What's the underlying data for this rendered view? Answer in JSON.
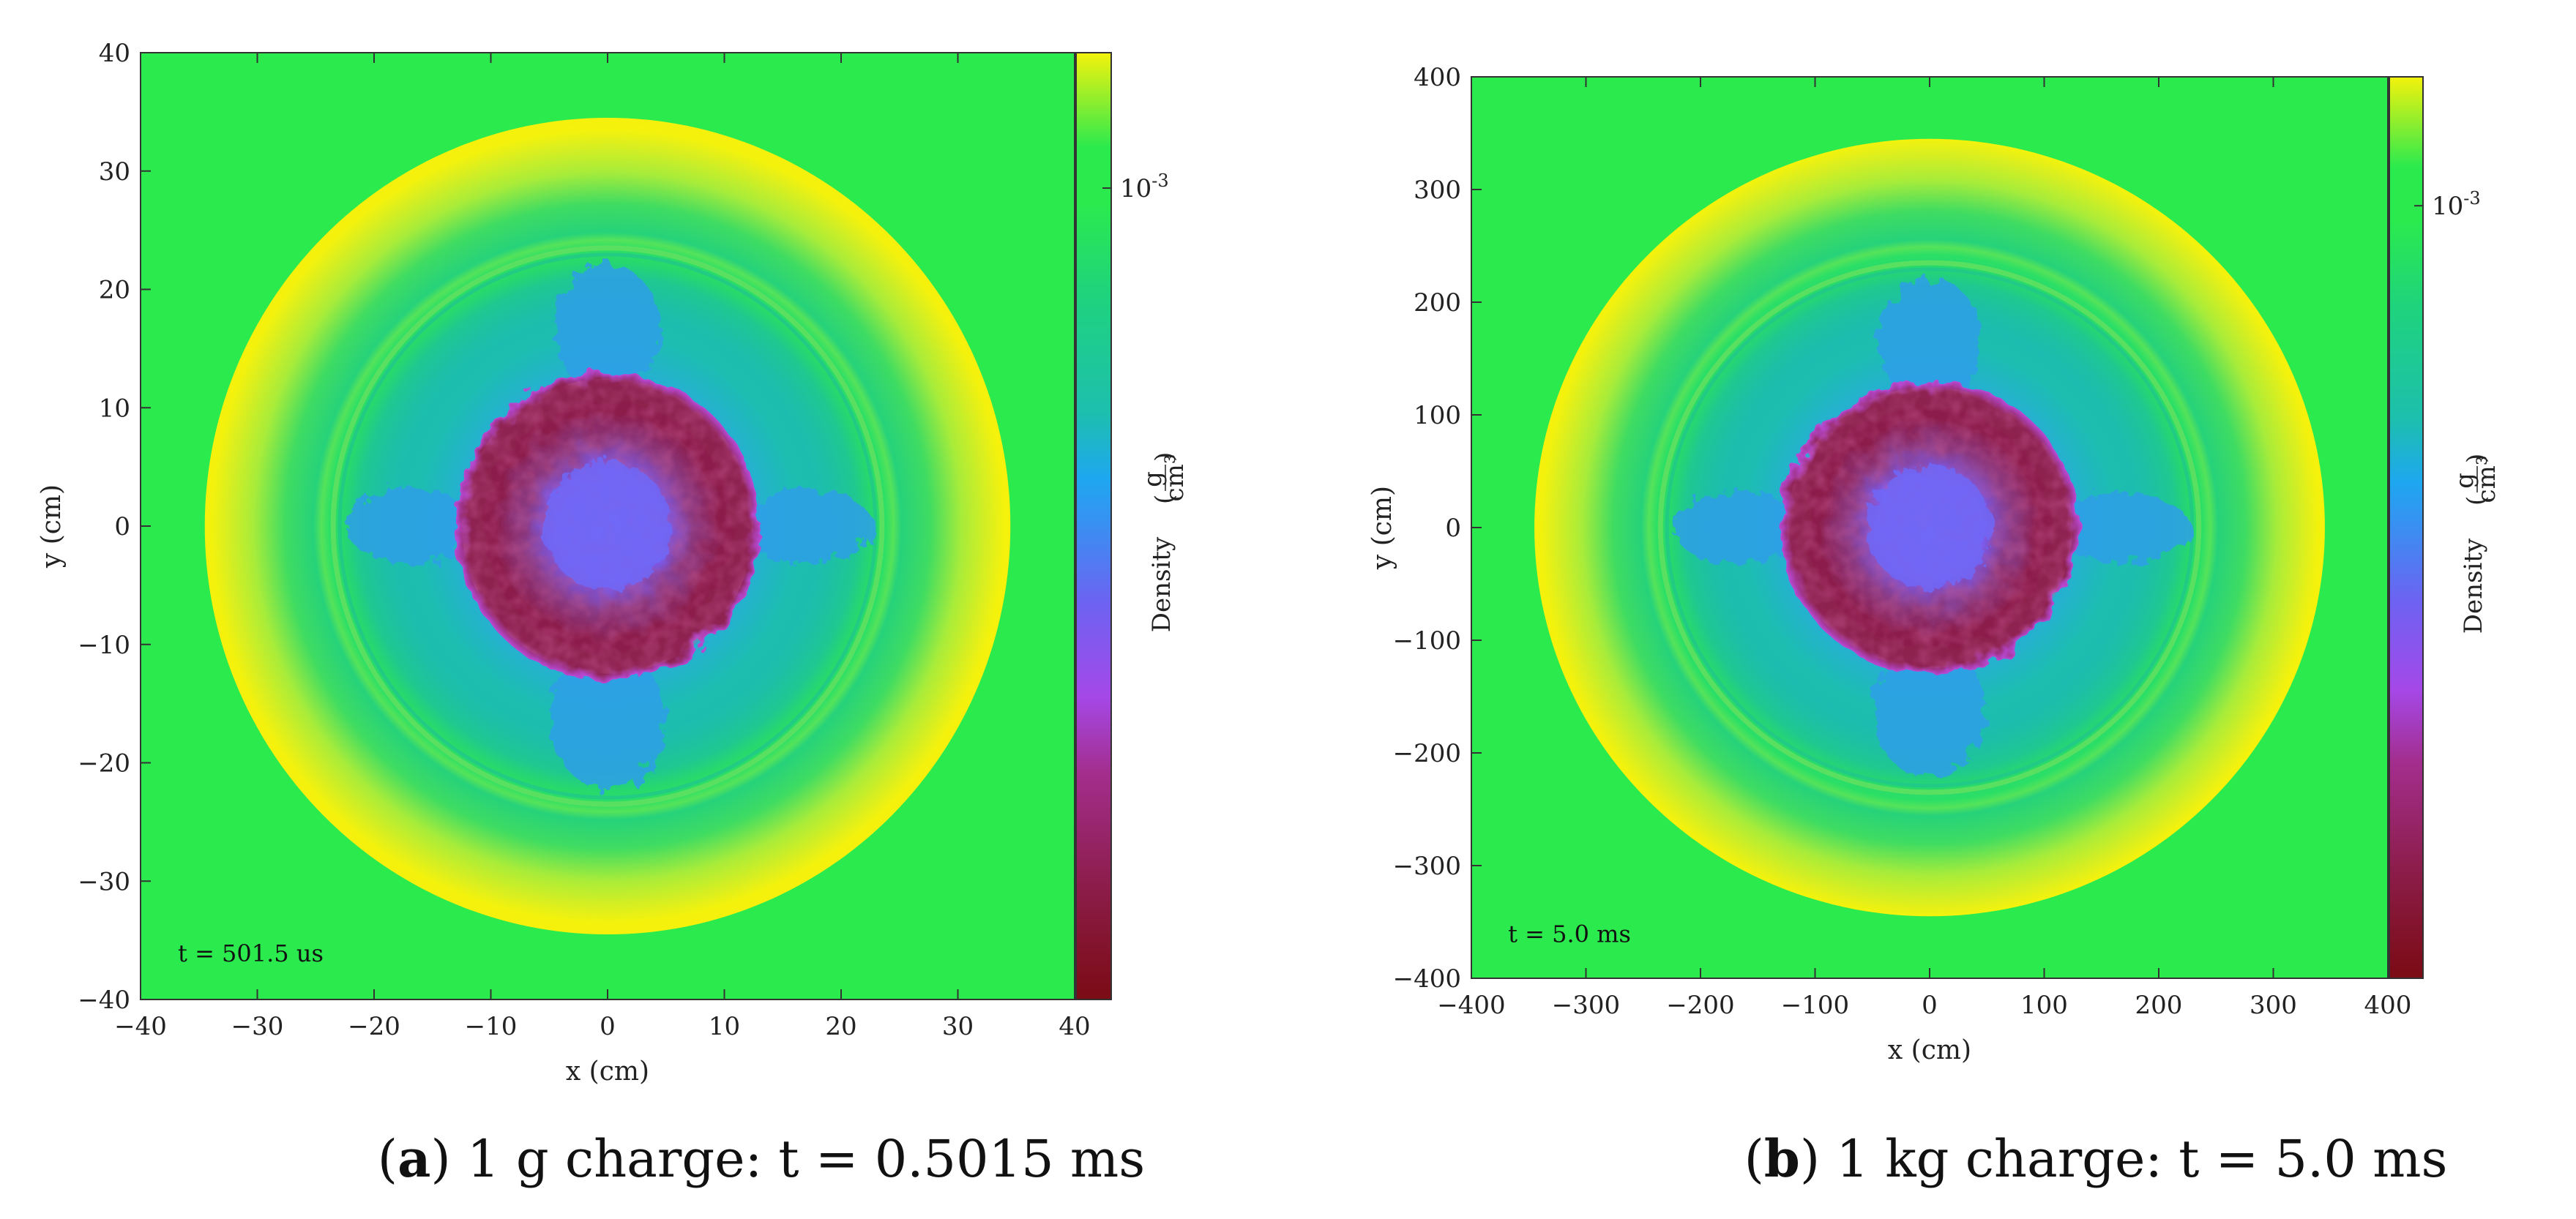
{
  "chart_data": [
    {
      "type": "heatmap",
      "description_field": "density",
      "panel_letter": "a",
      "caption_rest": " 1 g charge:  t = 0.5015 ms",
      "time_label": "t = 501.5 us",
      "xlabel": "x  (cm)",
      "ylabel": "y  (cm)",
      "xlim": [
        -40,
        40
      ],
      "ylim": [
        -40,
        40
      ],
      "xticks": [
        -40,
        -30,
        -20,
        -10,
        0,
        10,
        20,
        30,
        40
      ],
      "yticks": [
        -40,
        -30,
        -20,
        -10,
        0,
        10,
        20,
        30,
        40
      ],
      "outer_shock_radius": 34.5,
      "inner_shock_radius": 23.5,
      "fireball_radius": 13,
      "colorbar_label": "Density",
      "colorbar_unit": "g/cm³",
      "colorbar_unit_num": "g",
      "colorbar_unit_den": "cm³",
      "colorbar_tick": "10-3",
      "colorbar_tick_base": "10",
      "colorbar_tick_exp": "-3"
    },
    {
      "type": "heatmap",
      "description_field": "density",
      "panel_letter": "b",
      "caption_rest": " 1 kg charge:  t = 5.0 ms",
      "time_label": "t = 5.0 ms",
      "xlabel": "x  (cm)",
      "ylabel": "y  (cm)",
      "xlim": [
        -400,
        400
      ],
      "ylim": [
        -400,
        400
      ],
      "xticks": [
        -400,
        -300,
        -200,
        -100,
        0,
        100,
        200,
        300,
        400
      ],
      "yticks": [
        -400,
        -300,
        -200,
        -100,
        0,
        100,
        200,
        300,
        400
      ],
      "outer_shock_radius": 345,
      "inner_shock_radius": 235,
      "fireball_radius": 130,
      "colorbar_label": "Density",
      "colorbar_unit": "g/cm³",
      "colorbar_unit_num": "g",
      "colorbar_unit_den": "cm³",
      "colorbar_tick": "10-3",
      "colorbar_tick_base": "10",
      "colorbar_tick_exp": "-3"
    }
  ],
  "colors": {
    "ambient": "#2bea4e",
    "shock_peak": "#f4f20c",
    "shock_mid": "#a8ec3a",
    "post_shock": "#1fd47a",
    "inner_cyan": "#1bb9b8",
    "core_blue": "#3a8ff2",
    "core_violet": "#7f5cf5",
    "fireball": "#8c1d4a"
  }
}
